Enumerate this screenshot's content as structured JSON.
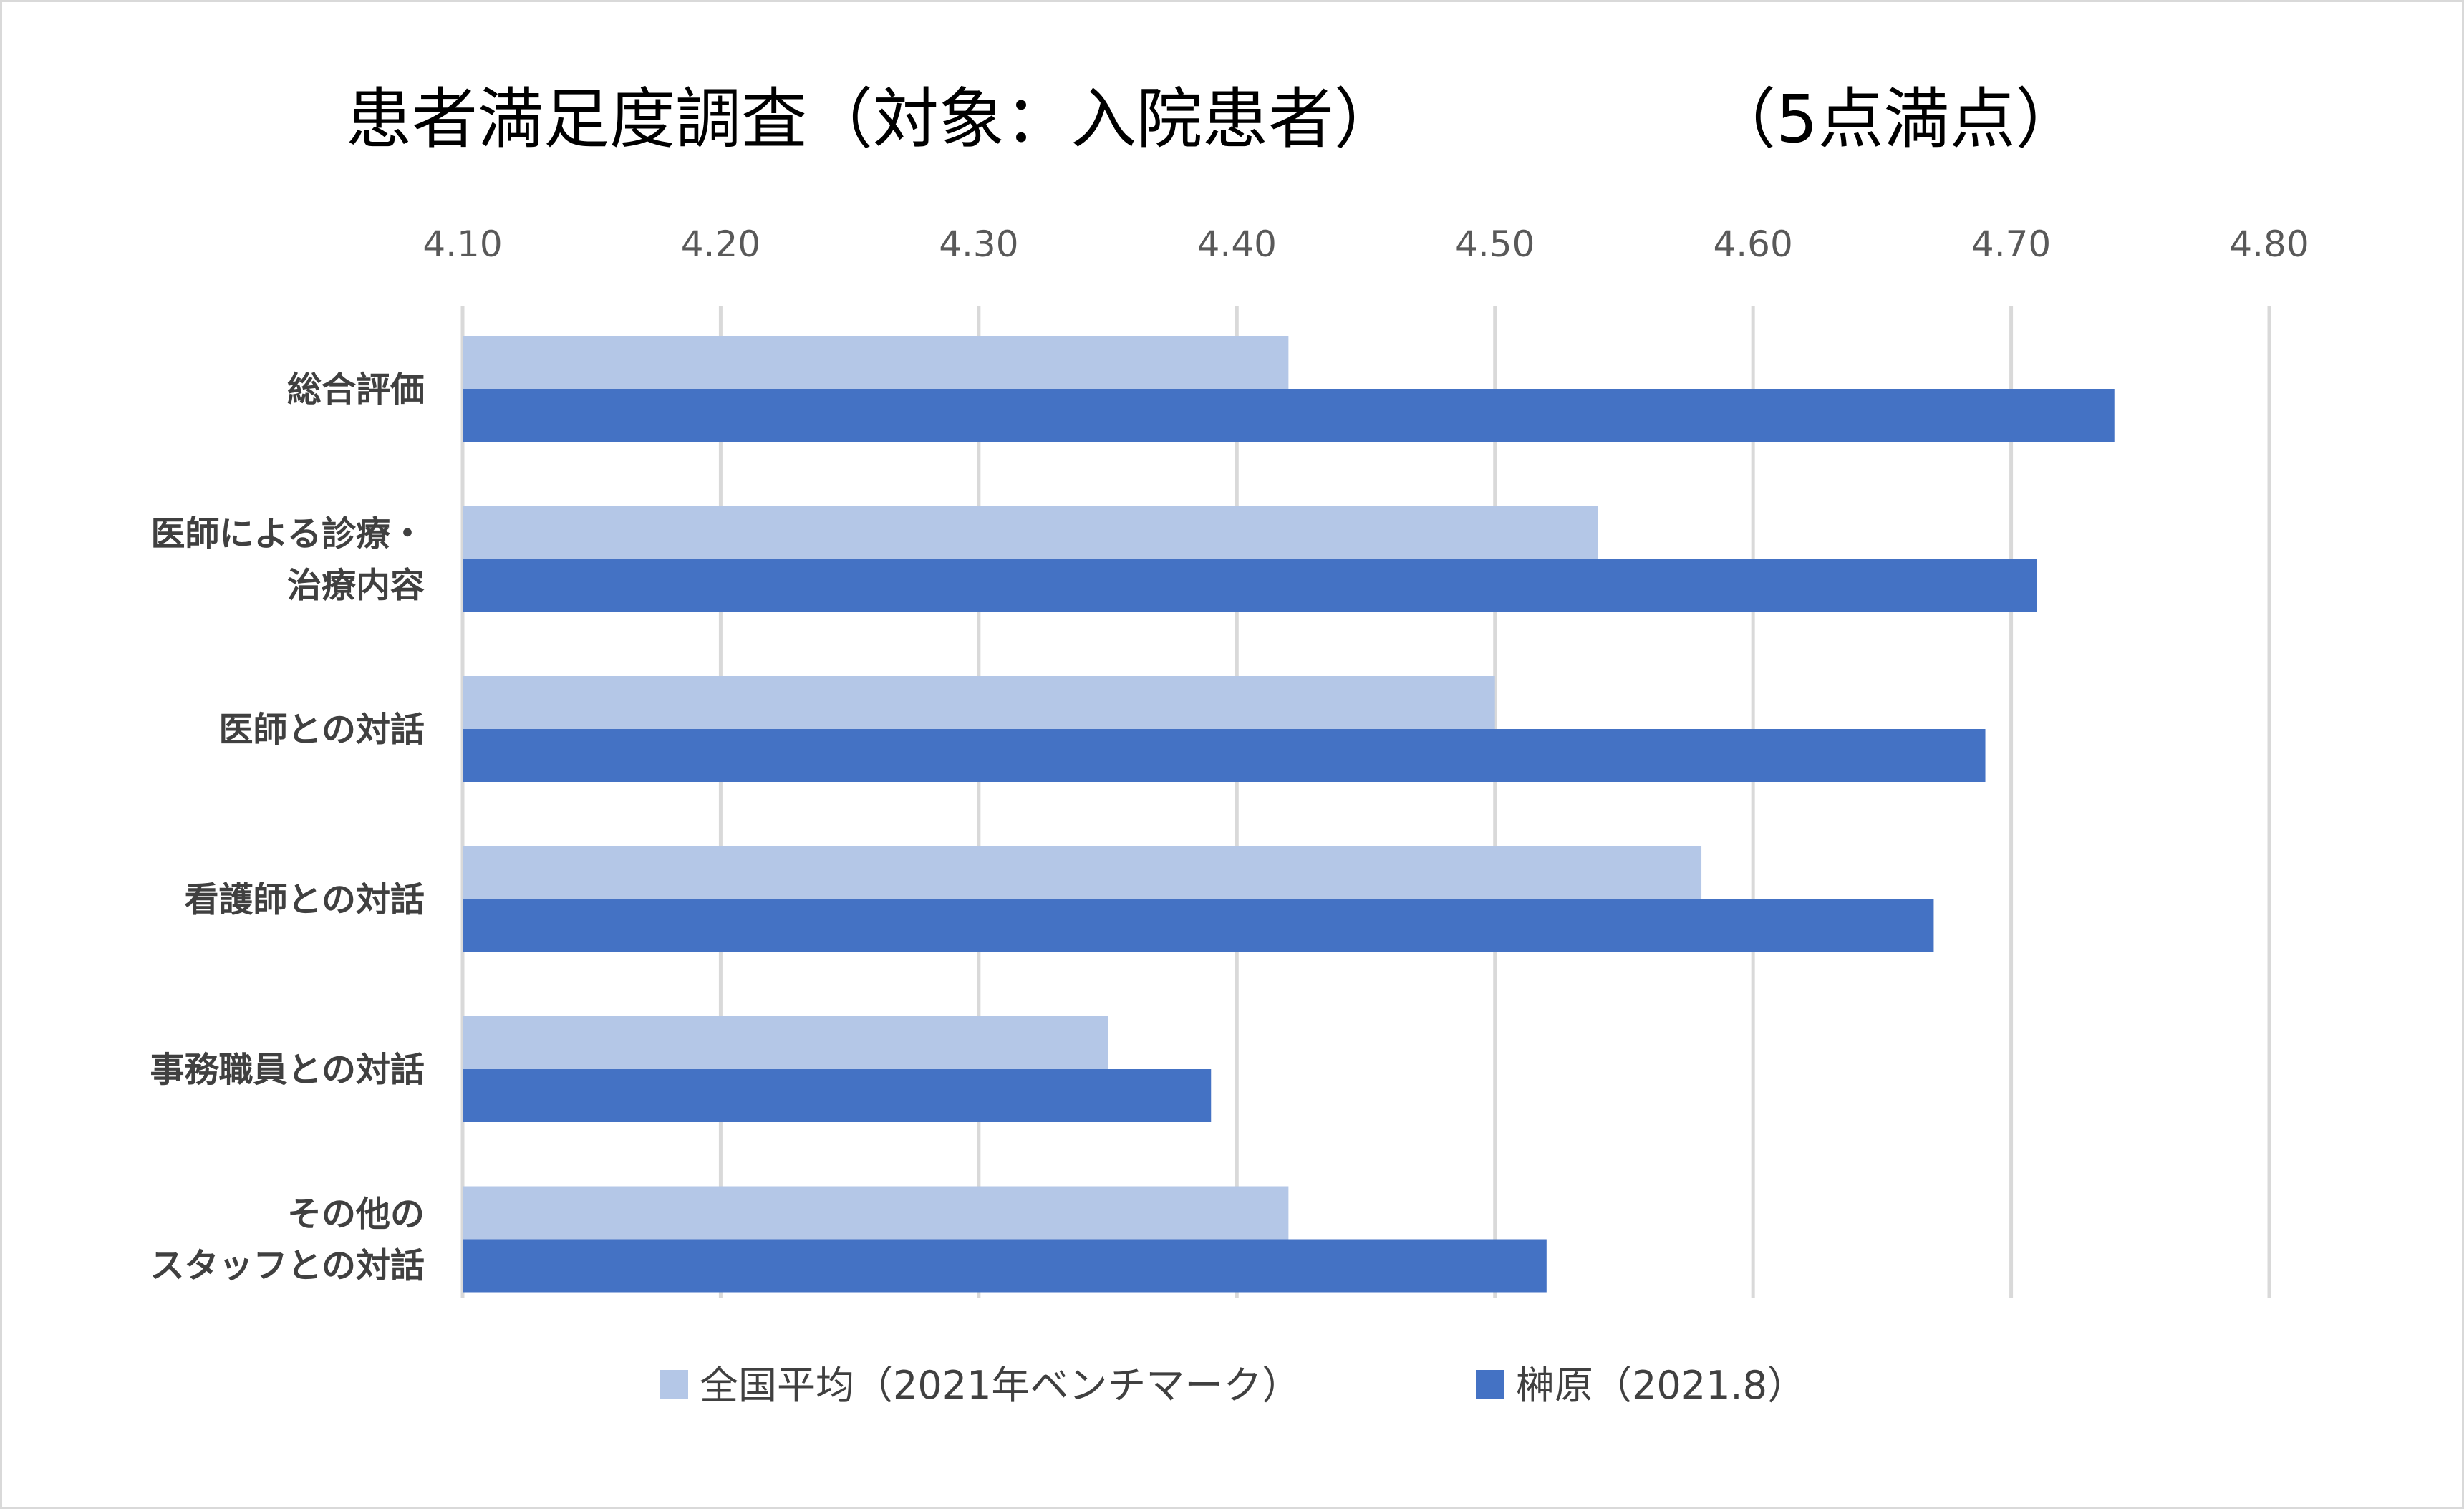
{
  "chart_data": {
    "type": "bar",
    "orientation": "horizontal",
    "title": "患者満足度調査（対象：入院患者）",
    "subtitle": "（5点満点）",
    "categories": [
      [
        "総合評価"
      ],
      [
        "医師による診療・",
        "治療内容"
      ],
      [
        "医師との対話"
      ],
      [
        "看護師との対話"
      ],
      [
        "事務職員との対話"
      ],
      [
        "その他の",
        "スタッフとの対話"
      ]
    ],
    "series": [
      {
        "name": "全国平均（2021年ベンチマーク）",
        "color": "#b4c7e7",
        "values": [
          4.42,
          4.54,
          4.5,
          4.58,
          4.35,
          4.42
        ]
      },
      {
        "name": "榊原（2021.8）",
        "color": "#4472c4",
        "values": [
          4.74,
          4.71,
          4.69,
          4.67,
          4.39,
          4.52
        ]
      }
    ],
    "xlim": [
      4.1,
      4.8
    ],
    "xticks": [
      "4.10",
      "4.20",
      "4.30",
      "4.40",
      "4.50",
      "4.60",
      "4.70",
      "4.80"
    ],
    "xaxis_position": "top",
    "grid": true,
    "gridline_color": "#d9d9d9",
    "legend_position": "bottom"
  }
}
